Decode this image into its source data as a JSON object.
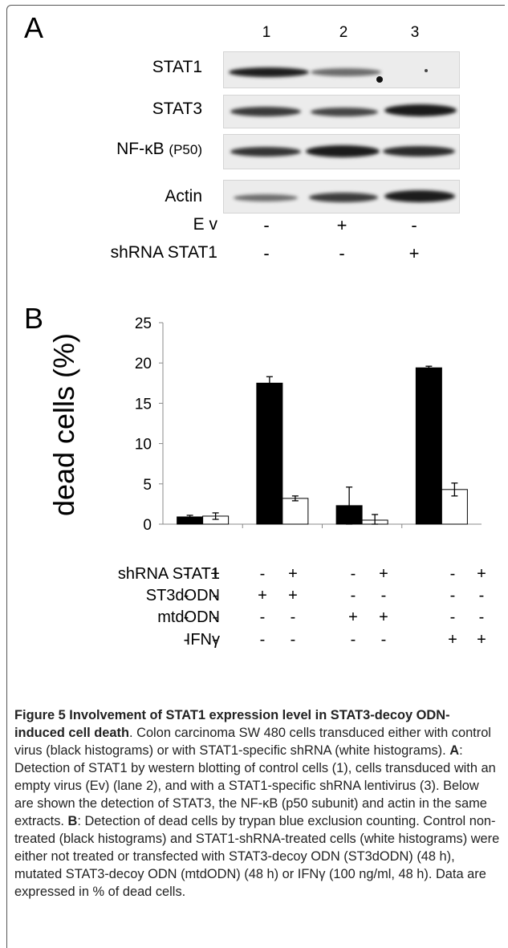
{
  "panel_a": {
    "letter": "A",
    "lanes": [
      "1",
      "2",
      "3"
    ],
    "blots": [
      {
        "label": "STAT1"
      },
      {
        "label": "STAT3"
      },
      {
        "label_prefix": "NF-κB ",
        "label_suffix": "(P50)"
      },
      {
        "label": "Actin"
      }
    ],
    "treatments": [
      {
        "label": "E v",
        "signs": [
          "-",
          "+",
          "-"
        ]
      },
      {
        "label": "shRNA STAT1",
        "signs": [
          "-",
          "-",
          "+"
        ]
      }
    ]
  },
  "panel_b": {
    "letter": "B",
    "treatments": [
      {
        "label": "shRNA STAT1",
        "signs": [
          "-",
          "+",
          "-",
          "+",
          "-",
          "+",
          "-",
          "+"
        ]
      },
      {
        "label": "ST3dODN",
        "signs": [
          "-",
          "-",
          "+",
          "+",
          "-",
          "-",
          "-",
          "-"
        ]
      },
      {
        "label": "mtdODN",
        "signs": [
          "-",
          "-",
          "-",
          "-",
          "+",
          "+",
          "-",
          "-"
        ]
      },
      {
        "label": "IFNγ",
        "signs": [
          "-",
          "-",
          "-",
          "-",
          "-",
          "-",
          "+",
          "+"
        ]
      }
    ]
  },
  "chart_data": {
    "type": "bar",
    "ylabel": "dead cells (%)",
    "ylim": [
      0,
      25
    ],
    "yticks": [
      "0",
      "5",
      "10",
      "15",
      "20",
      "25"
    ],
    "colors": {
      "control": "#000000",
      "shrna": "#ffffff"
    },
    "groups": [
      {
        "control": 0.9,
        "control_err": 0.2,
        "shrna": 1.0,
        "shrna_err": 0.4
      },
      {
        "control": 17.5,
        "control_err": 0.8,
        "shrna": 3.2,
        "shrna_err": 0.3
      },
      {
        "control": 2.3,
        "control_err": 2.3,
        "shrna": 0.5,
        "shrna_err": 0.7
      },
      {
        "control": 19.4,
        "control_err": 0.2,
        "shrna": 4.3,
        "shrna_err": 0.8
      }
    ]
  },
  "caption": {
    "title": "Figure 5 Involvement of STAT1 expression level in STAT3-decoy ODN-induced cell death",
    "p1": ". Colon carcinoma SW 480 cells transduced either with control virus (black histograms) or with STAT1-specific shRNA (white histograms). ",
    "a_label": "A",
    "p2": ": Detection of STAT1 by western blotting of control cells (1), cells transduced with an empty virus (Ev) (lane 2), and with a STAT1-specific shRNA lentivirus (3). Below are shown the detection of STAT3, the NF-κB (p50 subunit) and actin in the same extracts. ",
    "b_label": "B",
    "p3": ": Detection of dead cells by trypan blue exclusion counting. Control non-treated (black histograms) and STAT1-shRNA-treated cells (white histograms) were either not treated or transfected with STAT3-decoy ODN (ST3dODN) (48 h), mutated STAT3-decoy ODN (mtdODN) (48 h) or IFNγ (100 ng/ml, 48 h). Data are expressed in % of dead cells."
  }
}
